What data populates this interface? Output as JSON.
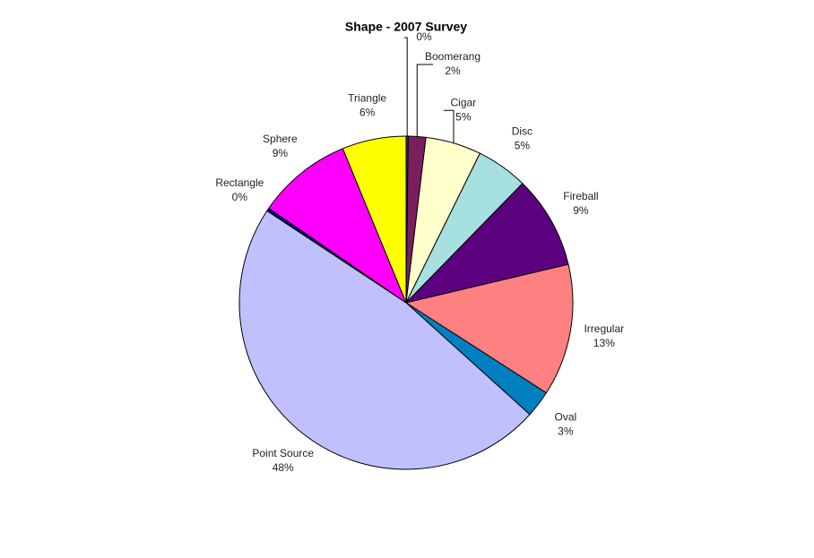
{
  "chart_data": {
    "type": "pie",
    "title": "Shape - 2007 Survey",
    "categories": [
      null,
      "Boomerang",
      "Cigar",
      "Disc",
      "Fireball",
      "Irregular",
      "Oval",
      "Point Source",
      "Rectangle",
      "Sphere",
      "Triangle"
    ],
    "values": [
      0.2,
      1.7,
      5.4,
      5.0,
      9.0,
      12.8,
      2.6,
      47.6,
      0.3,
      9.2,
      6.2
    ],
    "value_labels": [
      "0%",
      "2%",
      "5%",
      "5%",
      "9%",
      "13%",
      "3%",
      "48%",
      "0%",
      "9%",
      "6%"
    ],
    "colors": [
      "#333399",
      "#7a1f5c",
      "#ffffcc",
      "#a6e0e0",
      "#5c0080",
      "#ff8080",
      "#0080c0",
      "#c0c0ff",
      "#000080",
      "#ff00ff",
      "#ffff00"
    ]
  }
}
